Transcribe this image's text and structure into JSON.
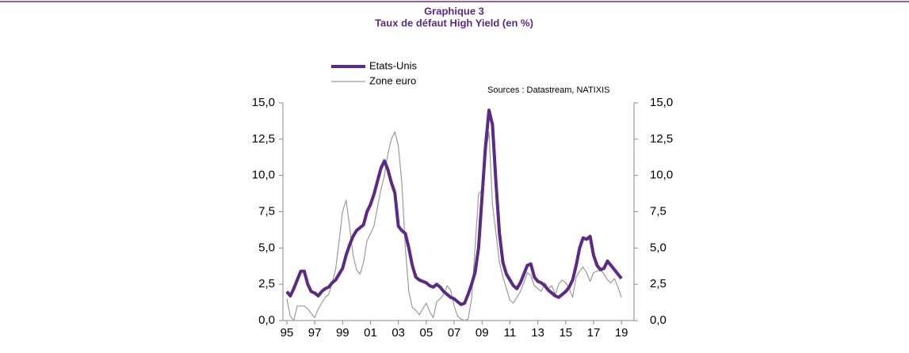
{
  "chart_data": {
    "type": "line",
    "title": "Graphique 3",
    "subtitle": "Taux de défaut High Yield (en %)",
    "annotation": "Sources : Datastream, NATIXIS",
    "x": [
      1995,
      1995.25,
      1995.5,
      1995.75,
      1996,
      1996.25,
      1996.5,
      1996.75,
      1997,
      1997.25,
      1997.5,
      1997.75,
      1998,
      1998.25,
      1998.5,
      1998.75,
      1999,
      1999.25,
      1999.5,
      1999.75,
      2000,
      2000.25,
      2000.5,
      2000.75,
      2001,
      2001.25,
      2001.5,
      2001.75,
      2002,
      2002.25,
      2002.5,
      2002.75,
      2003,
      2003.25,
      2003.5,
      2003.75,
      2004,
      2004.25,
      2004.5,
      2004.75,
      2005,
      2005.25,
      2005.5,
      2005.75,
      2006,
      2006.25,
      2006.5,
      2006.75,
      2007,
      2007.25,
      2007.5,
      2007.75,
      2008,
      2008.25,
      2008.5,
      2008.75,
      2009,
      2009.25,
      2009.5,
      2009.75,
      2010,
      2010.25,
      2010.5,
      2010.75,
      2011,
      2011.25,
      2011.5,
      2011.75,
      2012,
      2012.25,
      2012.5,
      2012.75,
      2013,
      2013.25,
      2013.5,
      2013.75,
      2014,
      2014.25,
      2014.5,
      2014.75,
      2015,
      2015.25,
      2015.5,
      2015.75,
      2016,
      2016.25,
      2016.5,
      2016.75,
      2017,
      2017.25,
      2017.5,
      2017.75,
      2018,
      2018.25,
      2018.5,
      2018.75,
      2019
    ],
    "series": [
      {
        "name": "Etats-Unis",
        "color": "#5b2a86",
        "width": 4,
        "values": [
          2.0,
          1.7,
          2.2,
          2.8,
          3.4,
          3.4,
          2.5,
          2.0,
          1.9,
          1.7,
          2.0,
          2.2,
          2.3,
          2.6,
          2.8,
          3.2,
          3.6,
          4.5,
          5.2,
          5.8,
          6.2,
          6.4,
          6.6,
          7.5,
          8.0,
          8.7,
          9.6,
          10.5,
          11.0,
          10.4,
          9.5,
          8.8,
          6.5,
          6.2,
          6.0,
          5.0,
          3.8,
          3.0,
          2.8,
          2.7,
          2.6,
          2.4,
          2.3,
          2.5,
          2.3,
          2.0,
          1.8,
          1.6,
          1.5,
          1.3,
          1.1,
          1.2,
          1.8,
          2.5,
          3.3,
          5.0,
          8.5,
          12.0,
          14.5,
          13.5,
          9.5,
          6.0,
          4.0,
          3.2,
          2.8,
          2.4,
          2.2,
          2.6,
          3.2,
          3.8,
          3.9,
          3.0,
          2.7,
          2.6,
          2.4,
          2.1,
          1.9,
          1.7,
          1.6,
          1.8,
          2.0,
          2.3,
          2.8,
          3.8,
          5.0,
          5.7,
          5.6,
          5.8,
          4.5,
          3.8,
          3.5,
          3.6,
          4.1,
          3.8,
          3.5,
          3.2,
          2.9
        ]
      },
      {
        "name": "Zone euro",
        "color": "#9a9a9a",
        "width": 1.2,
        "values": [
          1.5,
          0.3,
          0.0,
          1.0,
          1.0,
          1.0,
          0.8,
          0.5,
          0.2,
          0.8,
          1.2,
          1.6,
          1.8,
          2.6,
          3.5,
          5.5,
          7.5,
          8.3,
          6.5,
          4.5,
          3.5,
          3.2,
          4.0,
          5.5,
          6.0,
          6.5,
          7.8,
          9.0,
          10.0,
          11.5,
          12.5,
          13.0,
          12.0,
          9.5,
          5.0,
          2.0,
          0.9,
          0.7,
          0.4,
          0.8,
          1.2,
          0.6,
          0.2,
          1.3,
          1.5,
          1.8,
          2.4,
          2.1,
          1.0,
          0.3,
          0.1,
          0.0,
          0.1,
          1.5,
          5.0,
          8.7,
          9.0,
          11.5,
          13.0,
          8.0,
          6.0,
          4.0,
          3.0,
          2.2,
          1.4,
          1.2,
          1.6,
          2.0,
          2.6,
          3.3,
          3.1,
          2.4,
          2.2,
          2.0,
          2.6,
          2.2,
          2.4,
          1.8,
          2.5,
          2.8,
          2.6,
          2.2,
          1.6,
          3.0,
          3.4,
          3.7,
          3.3,
          2.7,
          3.3,
          3.4,
          3.5,
          3.2,
          2.8,
          2.6,
          2.9,
          2.3,
          1.6
        ]
      }
    ],
    "xlim": [
      1994.72,
      2019.9
    ],
    "xticks": [
      {
        "value": 1995,
        "label": "95"
      },
      {
        "value": 1997,
        "label": "97"
      },
      {
        "value": 1999,
        "label": "99"
      },
      {
        "value": 2001,
        "label": "01"
      },
      {
        "value": 2003,
        "label": "03"
      },
      {
        "value": 2005,
        "label": "05"
      },
      {
        "value": 2007,
        "label": "07"
      },
      {
        "value": 2009,
        "label": "09"
      },
      {
        "value": 2011,
        "label": "11"
      },
      {
        "value": 2013,
        "label": "13"
      },
      {
        "value": 2015,
        "label": "15"
      },
      {
        "value": 2017,
        "label": "17"
      },
      {
        "value": 2019,
        "label": "19"
      }
    ],
    "ylim": [
      0,
      15
    ],
    "yticks": [
      {
        "value": 0,
        "label": "0,0"
      },
      {
        "value": 2.5,
        "label": "2,5"
      },
      {
        "value": 5,
        "label": "5,0"
      },
      {
        "value": 7.5,
        "label": "7,5"
      },
      {
        "value": 10,
        "label": "10,0"
      },
      {
        "value": 12.5,
        "label": "12,5"
      },
      {
        "value": 15,
        "label": "15,0"
      }
    ],
    "y2lim": [
      0,
      15
    ],
    "y2ticks": [
      {
        "value": 0,
        "label": "0,0"
      },
      {
        "value": 2.5,
        "label": "2,5"
      },
      {
        "value": 5,
        "label": "5,0"
      },
      {
        "value": 7.5,
        "label": "7,5"
      },
      {
        "value": 10,
        "label": "10,0"
      },
      {
        "value": 12.5,
        "label": "12,5"
      },
      {
        "value": 15,
        "label": "15,0"
      }
    ]
  }
}
